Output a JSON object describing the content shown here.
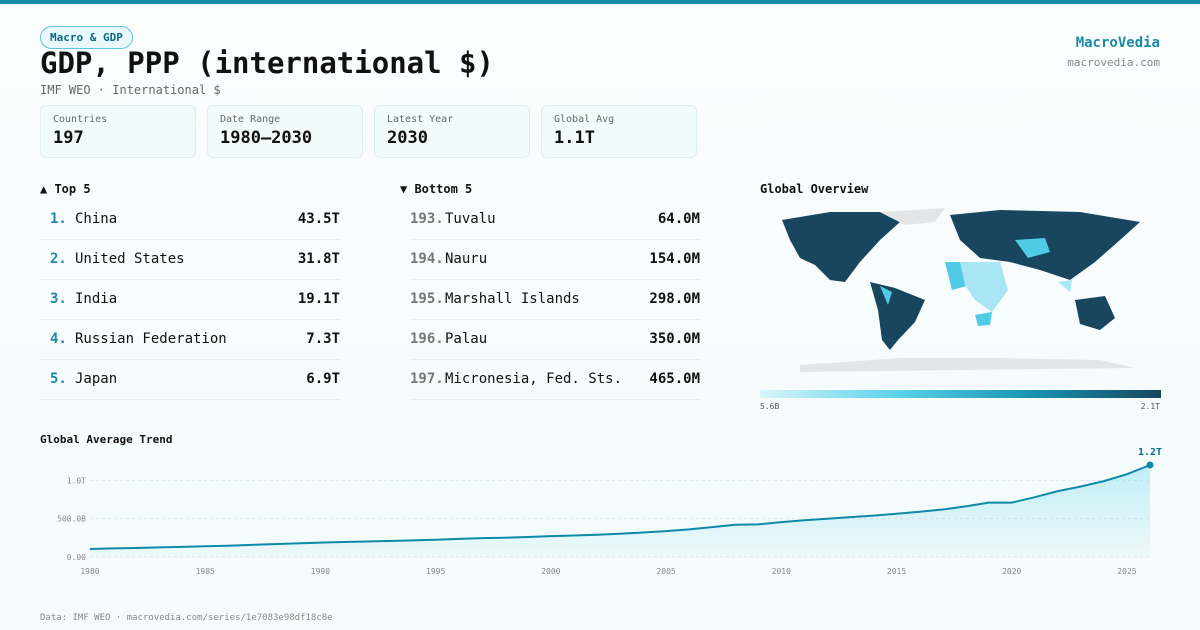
{
  "header": {
    "tag": "Macro & GDP",
    "title": "GDP, PPP (international $)",
    "subtitle": "IMF WEO · International $",
    "brand": "MacroVedia",
    "site": "macrovedia.com"
  },
  "stats": [
    {
      "label": "Countries",
      "value": "197"
    },
    {
      "label": "Date Range",
      "value": "1980–2030"
    },
    {
      "label": "Latest Year",
      "value": "2030"
    },
    {
      "label": "Global Avg",
      "value": "1.1T"
    }
  ],
  "top": {
    "title": "▲ Top 5",
    "rows": [
      {
        "rank": "1.",
        "name": "China",
        "value": "43.5T"
      },
      {
        "rank": "2.",
        "name": "United States",
        "value": "31.8T"
      },
      {
        "rank": "3.",
        "name": "India",
        "value": "19.1T"
      },
      {
        "rank": "4.",
        "name": "Russian Federation",
        "value": "7.3T"
      },
      {
        "rank": "5.",
        "name": "Japan",
        "value": "6.9T"
      }
    ]
  },
  "bottom": {
    "title": "▼ Bottom 5",
    "rows": [
      {
        "rank": "193.",
        "name": "Tuvalu",
        "value": "64.0M"
      },
      {
        "rank": "194.",
        "name": "Nauru",
        "value": "154.0M"
      },
      {
        "rank": "195.",
        "name": "Marshall Islands",
        "value": "298.0M"
      },
      {
        "rank": "196.",
        "name": "Palau",
        "value": "350.0M"
      },
      {
        "rank": "197.",
        "name": "Micronesia, Fed. Sts.",
        "value": "465.0M"
      }
    ]
  },
  "map": {
    "title": "Global Overview",
    "min_label": "5.6B",
    "max_label": "2.1T"
  },
  "trend": {
    "type": "line",
    "title": "Global Average Trend",
    "color": "#0e8aa8",
    "x": [
      1980,
      1981,
      1982,
      1983,
      1984,
      1985,
      1986,
      1987,
      1988,
      1989,
      1990,
      1991,
      1992,
      1993,
      1994,
      1995,
      1996,
      1997,
      1998,
      1999,
      2000,
      2001,
      2002,
      2003,
      2004,
      2005,
      2006,
      2007,
      2008,
      2009,
      2010,
      2011,
      2012,
      2013,
      2014,
      2015,
      2016,
      2017,
      2018,
      2019,
      2020,
      2021,
      2022,
      2023,
      2024,
      2025,
      2026
    ],
    "values": [
      104,
      112,
      118,
      125,
      132,
      140,
      148,
      158,
      168,
      178,
      188,
      195,
      202,
      209,
      217,
      226,
      236,
      246,
      252,
      261,
      272,
      280,
      290,
      303,
      320,
      338,
      360,
      390,
      420,
      425,
      455,
      480,
      500,
      520,
      540,
      565,
      590,
      620,
      660,
      710,
      710,
      780,
      860,
      920,
      990,
      1080,
      1200
    ],
    "end_label": "1.2T",
    "xlim": [
      1980,
      2026
    ],
    "xticks": [
      1980,
      1985,
      1990,
      1995,
      2000,
      2005,
      2010,
      2015,
      2020,
      2025
    ],
    "ylim": [
      0,
      1200
    ],
    "yticks": [
      {
        "value": 0,
        "label": "0.00"
      },
      {
        "value": 500,
        "label": "500.0B"
      },
      {
        "value": 1000,
        "label": "1.0T"
      }
    ],
    "grid": true
  },
  "footer": "Data: IMF WEO · macrovedia.com/series/1e7083e98df18c8e"
}
